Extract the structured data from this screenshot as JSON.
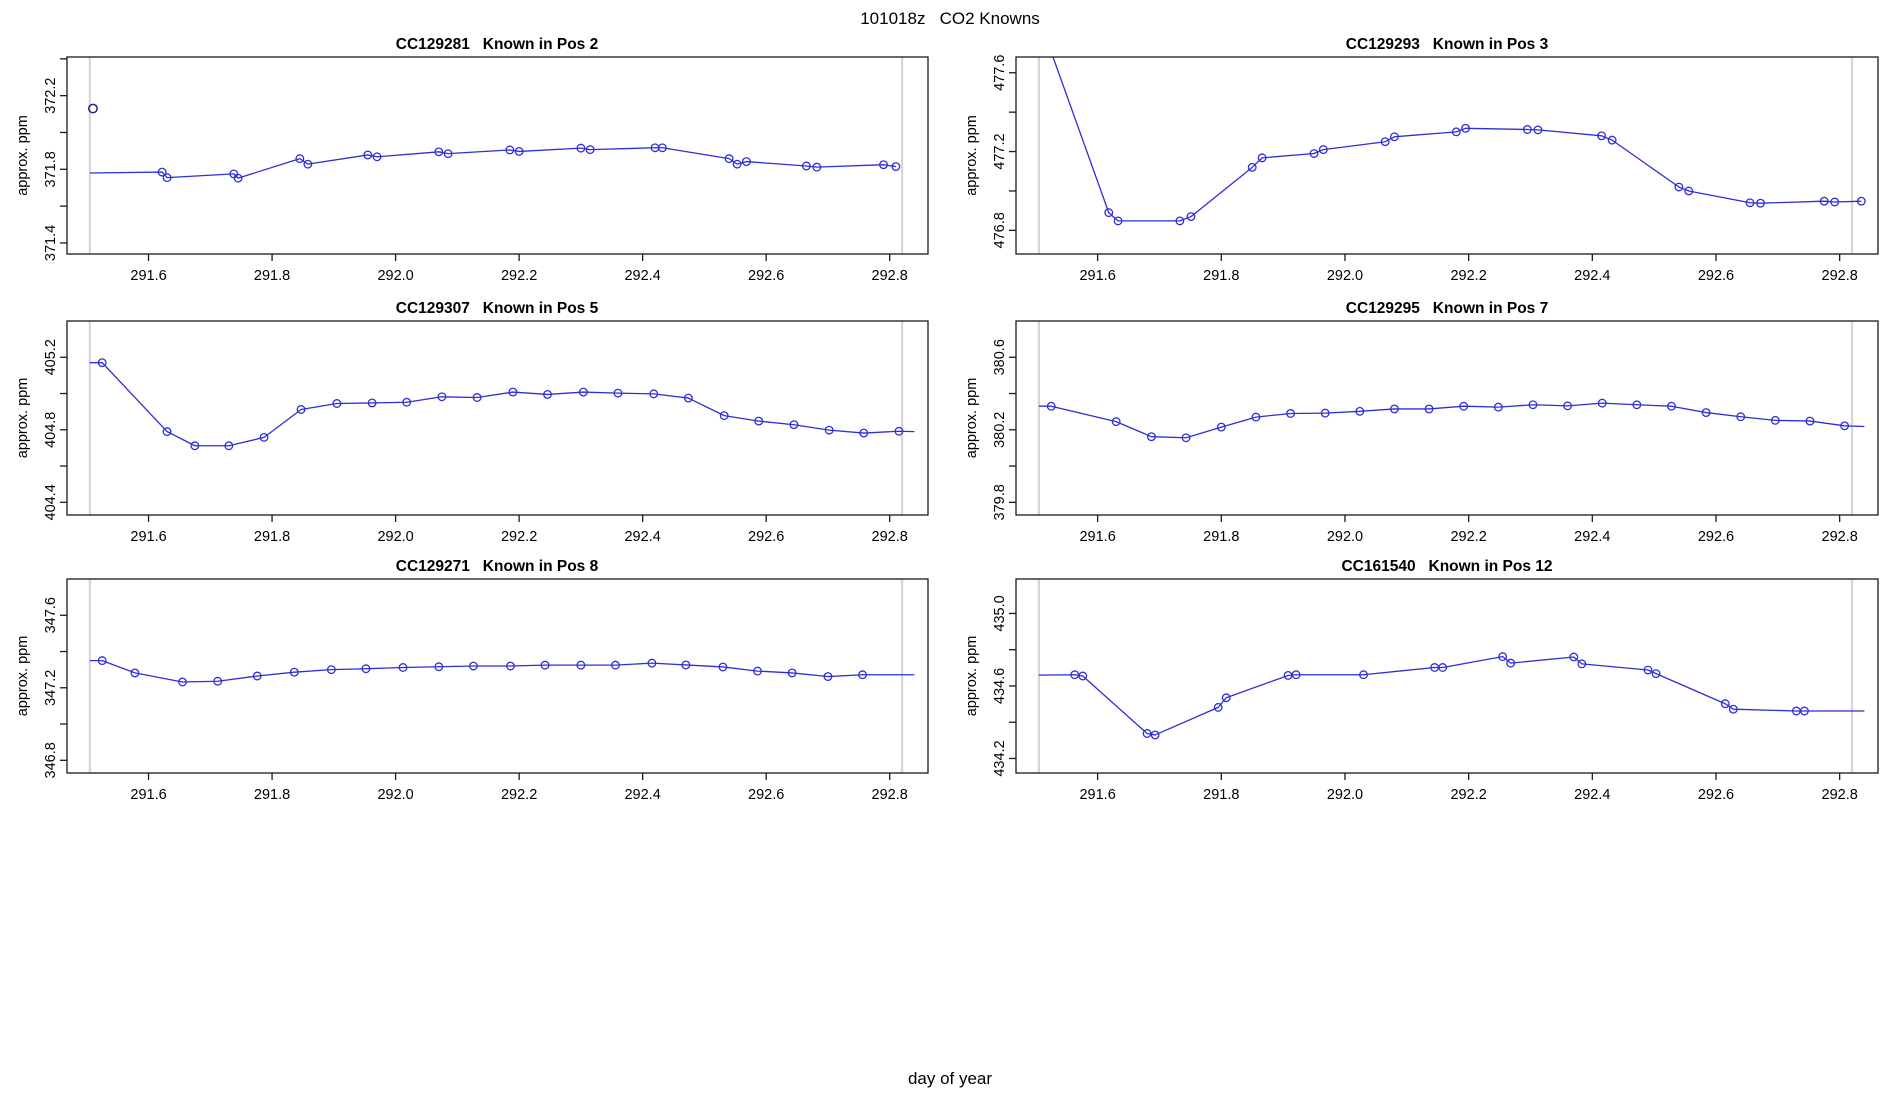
{
  "figure": {
    "title": "101018z   CO2 Knowns",
    "xlabel": "day of year",
    "background": "#ffffff",
    "line_color": "#2e2ed6",
    "marker_color": "#2e2ed6",
    "outlier_color": "#22228a",
    "vline_color": "#d6d6d6",
    "axis_color": "#1a1a1a"
  },
  "chart_data": [
    {
      "type": "line",
      "title": "CC129281   Known in Pos 2",
      "ylabel": "approx. ppm",
      "xlabel": "day of year",
      "xlim": [
        291.468,
        292.862
      ],
      "ylim": [
        371.34,
        372.41
      ],
      "xticks": [
        291.6,
        291.8,
        292.0,
        292.2,
        292.4,
        292.6,
        292.8
      ],
      "xtick_labels": [
        "291.6",
        "291.8",
        "292.0",
        "292.2",
        "292.4",
        "292.6",
        "292.8"
      ],
      "yticks": [
        371.4,
        371.6,
        371.8,
        372.0,
        372.2,
        372.4
      ],
      "ytick_labels": [
        "371.4",
        "",
        "371.8",
        "",
        "372.2",
        ""
      ],
      "vlines": [
        291.505,
        292.82
      ],
      "grid": false,
      "points": [
        [
          291.505,
          371.78,
          0
        ],
        [
          291.622,
          371.785
        ],
        [
          291.63,
          371.755
        ],
        [
          291.738,
          371.775
        ],
        [
          291.745,
          371.752
        ],
        [
          291.845,
          371.858
        ],
        [
          291.858,
          371.828
        ],
        [
          291.955,
          371.878
        ],
        [
          291.97,
          371.868
        ],
        [
          292.07,
          371.895
        ],
        [
          292.085,
          371.885
        ],
        [
          292.185,
          371.905
        ],
        [
          292.2,
          371.897
        ],
        [
          292.3,
          371.915
        ],
        [
          292.315,
          371.907
        ],
        [
          292.42,
          371.917
        ],
        [
          292.432,
          371.917
        ],
        [
          292.54,
          371.858
        ],
        [
          292.553,
          371.828
        ],
        [
          292.568,
          371.842
        ],
        [
          292.665,
          371.818
        ],
        [
          292.682,
          371.812
        ],
        [
          292.79,
          371.825
        ],
        [
          292.81,
          371.815
        ]
      ],
      "extra_points": [
        [
          291.51,
          372.13
        ]
      ]
    },
    {
      "type": "line",
      "title": "CC129293   Known in Pos 3",
      "ylabel": "approx. ppm",
      "xlabel": "day of year",
      "xlim": [
        291.468,
        292.862
      ],
      "ylim": [
        476.68,
        477.68
      ],
      "xticks": [
        291.6,
        291.8,
        292.0,
        292.2,
        292.4,
        292.6,
        292.8
      ],
      "xtick_labels": [
        "291.6",
        "291.8",
        "292.0",
        "292.2",
        "292.4",
        "292.6",
        "292.8"
      ],
      "yticks": [
        476.8,
        477.0,
        477.2,
        477.4,
        477.6
      ],
      "ytick_labels": [
        "476.8",
        "",
        "477.2",
        "",
        "477.6"
      ],
      "vlines": [
        291.505,
        292.82
      ],
      "grid": false,
      "points": [
        [
          291.505,
          477.88,
          0
        ],
        [
          291.618,
          476.89
        ],
        [
          291.633,
          476.848
        ],
        [
          291.733,
          476.848
        ],
        [
          291.751,
          476.87
        ],
        [
          291.85,
          477.12
        ],
        [
          291.866,
          477.168
        ],
        [
          291.95,
          477.19
        ],
        [
          291.965,
          477.21
        ],
        [
          292.065,
          477.25
        ],
        [
          292.08,
          477.275
        ],
        [
          292.18,
          477.3
        ],
        [
          292.195,
          477.318
        ],
        [
          292.295,
          477.312
        ],
        [
          292.312,
          477.31
        ],
        [
          292.415,
          477.28
        ],
        [
          292.432,
          477.258
        ],
        [
          292.54,
          477.02
        ],
        [
          292.556,
          477.0
        ],
        [
          292.655,
          476.94
        ],
        [
          292.672,
          476.938
        ],
        [
          292.775,
          476.948
        ],
        [
          292.792,
          476.944
        ],
        [
          292.835,
          476.948
        ]
      ],
      "extra_points": []
    },
    {
      "type": "line",
      "title": "CC129307   Known in Pos 5",
      "ylabel": "approx. ppm",
      "xlabel": "day of year",
      "xlim": [
        291.468,
        292.862
      ],
      "ylim": [
        404.33,
        405.4
      ],
      "xticks": [
        291.6,
        291.8,
        292.0,
        292.2,
        292.4,
        292.6,
        292.8
      ],
      "xtick_labels": [
        "291.6",
        "291.8",
        "292.0",
        "292.2",
        "292.4",
        "292.6",
        "292.8"
      ],
      "yticks": [
        404.4,
        404.6,
        404.8,
        405.0,
        405.2
      ],
      "ytick_labels": [
        "404.4",
        "",
        "404.8",
        "",
        "405.2"
      ],
      "vlines": [
        291.505,
        292.82
      ],
      "grid": false,
      "points": [
        [
          291.505,
          405.17,
          0
        ],
        [
          291.525,
          405.17
        ],
        [
          291.63,
          404.79
        ],
        [
          291.675,
          404.712
        ],
        [
          291.73,
          404.712
        ],
        [
          291.787,
          404.758
        ],
        [
          291.847,
          404.912
        ],
        [
          291.905,
          404.945
        ],
        [
          291.962,
          404.948
        ],
        [
          292.018,
          404.952
        ],
        [
          292.075,
          404.982
        ],
        [
          292.132,
          404.978
        ],
        [
          292.19,
          405.008
        ],
        [
          292.246,
          404.995
        ],
        [
          292.304,
          405.008
        ],
        [
          292.36,
          405.002
        ],
        [
          292.418,
          404.998
        ],
        [
          292.474,
          404.975
        ],
        [
          292.532,
          404.878
        ],
        [
          292.588,
          404.848
        ],
        [
          292.645,
          404.828
        ],
        [
          292.702,
          404.798
        ],
        [
          292.758,
          404.782
        ],
        [
          292.815,
          404.792
        ],
        [
          292.84,
          404.79,
          0
        ]
      ],
      "extra_points": []
    },
    {
      "type": "line",
      "title": "CC129295   Known in Pos 7",
      "ylabel": "approx. ppm",
      "xlabel": "day of year",
      "xlim": [
        291.468,
        292.862
      ],
      "ylim": [
        379.73,
        380.8
      ],
      "xticks": [
        291.6,
        291.8,
        292.0,
        292.2,
        292.4,
        292.6,
        292.8
      ],
      "xtick_labels": [
        "291.6",
        "291.8",
        "292.0",
        "292.2",
        "292.4",
        "292.6",
        "292.8"
      ],
      "yticks": [
        379.8,
        380.0,
        380.2,
        380.4,
        380.6
      ],
      "ytick_labels": [
        "379.8",
        "",
        "380.2",
        "",
        "380.6"
      ],
      "vlines": [
        291.505,
        292.82
      ],
      "grid": false,
      "points": [
        [
          291.505,
          380.33,
          0
        ],
        [
          291.525,
          380.33
        ],
        [
          291.63,
          380.245
        ],
        [
          291.687,
          380.162
        ],
        [
          291.743,
          380.156
        ],
        [
          291.8,
          380.215
        ],
        [
          291.856,
          380.27
        ],
        [
          291.912,
          380.29
        ],
        [
          291.968,
          380.292
        ],
        [
          292.024,
          380.302
        ],
        [
          292.08,
          380.315
        ],
        [
          292.136,
          380.315
        ],
        [
          292.192,
          380.33
        ],
        [
          292.248,
          380.325
        ],
        [
          292.304,
          380.338
        ],
        [
          292.36,
          380.332
        ],
        [
          292.416,
          380.347
        ],
        [
          292.472,
          380.338
        ],
        [
          292.528,
          380.33
        ],
        [
          292.584,
          380.295
        ],
        [
          292.64,
          380.272
        ],
        [
          292.696,
          380.252
        ],
        [
          292.752,
          380.248
        ],
        [
          292.808,
          380.222
        ],
        [
          292.84,
          380.218,
          0
        ]
      ],
      "extra_points": []
    },
    {
      "type": "line",
      "title": "CC129271   Known in Pos 8",
      "ylabel": "approx. ppm",
      "xlabel": "day of year",
      "xlim": [
        291.468,
        292.862
      ],
      "ylim": [
        346.73,
        347.8
      ],
      "xticks": [
        291.6,
        291.8,
        292.0,
        292.2,
        292.4,
        292.6,
        292.8
      ],
      "xtick_labels": [
        "291.6",
        "291.8",
        "292.0",
        "292.2",
        "292.4",
        "292.6",
        "292.8"
      ],
      "yticks": [
        346.8,
        347.0,
        347.2,
        347.4,
        347.6
      ],
      "ytick_labels": [
        "346.8",
        "",
        "347.2",
        "",
        "347.6"
      ],
      "vlines": [
        291.505,
        292.82
      ],
      "grid": false,
      "points": [
        [
          291.505,
          347.35,
          0
        ],
        [
          291.525,
          347.35
        ],
        [
          291.578,
          347.282
        ],
        [
          291.655,
          347.232
        ],
        [
          291.712,
          347.236
        ],
        [
          291.776,
          347.265
        ],
        [
          291.836,
          347.286
        ],
        [
          291.896,
          347.3
        ],
        [
          291.952,
          347.305
        ],
        [
          292.012,
          347.312
        ],
        [
          292.07,
          347.316
        ],
        [
          292.126,
          347.32
        ],
        [
          292.186,
          347.32
        ],
        [
          292.242,
          347.325
        ],
        [
          292.3,
          347.325
        ],
        [
          292.356,
          347.325
        ],
        [
          292.415,
          347.336
        ],
        [
          292.47,
          347.326
        ],
        [
          292.53,
          347.315
        ],
        [
          292.586,
          347.292
        ],
        [
          292.642,
          347.282
        ],
        [
          292.7,
          347.262
        ],
        [
          292.756,
          347.272
        ],
        [
          292.84,
          347.272,
          0
        ]
      ],
      "extra_points": []
    },
    {
      "type": "line",
      "title": "CC161540   Known in Pos 12",
      "ylabel": "approx. ppm",
      "xlabel": "day of year",
      "xlim": [
        291.468,
        292.862
      ],
      "ylim": [
        434.12,
        435.19
      ],
      "xticks": [
        291.6,
        291.8,
        292.0,
        292.2,
        292.4,
        292.6,
        292.8
      ],
      "xtick_labels": [
        "291.6",
        "291.8",
        "292.0",
        "292.2",
        "292.4",
        "292.6",
        "292.8"
      ],
      "yticks": [
        434.2,
        434.4,
        434.6,
        434.8,
        435.0
      ],
      "ytick_labels": [
        "434.2",
        "",
        "434.6",
        "",
        "435.0"
      ],
      "vlines": [
        291.505,
        292.82
      ],
      "grid": false,
      "points": [
        [
          291.505,
          434.66,
          0
        ],
        [
          291.563,
          434.662
        ],
        [
          291.576,
          434.655
        ],
        [
          291.68,
          434.338
        ],
        [
          291.693,
          434.33
        ],
        [
          291.795,
          434.482
        ],
        [
          291.808,
          434.535
        ],
        [
          291.908,
          434.658
        ],
        [
          291.921,
          434.662
        ],
        [
          292.03,
          434.662
        ],
        [
          292.145,
          434.702
        ],
        [
          292.158,
          434.702
        ],
        [
          292.255,
          434.762
        ],
        [
          292.268,
          434.726
        ],
        [
          292.37,
          434.76
        ],
        [
          292.383,
          434.722
        ],
        [
          292.49,
          434.688
        ],
        [
          292.503,
          434.668
        ],
        [
          292.615,
          434.502
        ],
        [
          292.628,
          434.472
        ],
        [
          292.73,
          434.462
        ],
        [
          292.743,
          434.462
        ],
        [
          292.84,
          434.462,
          0
        ]
      ],
      "extra_points": []
    }
  ]
}
